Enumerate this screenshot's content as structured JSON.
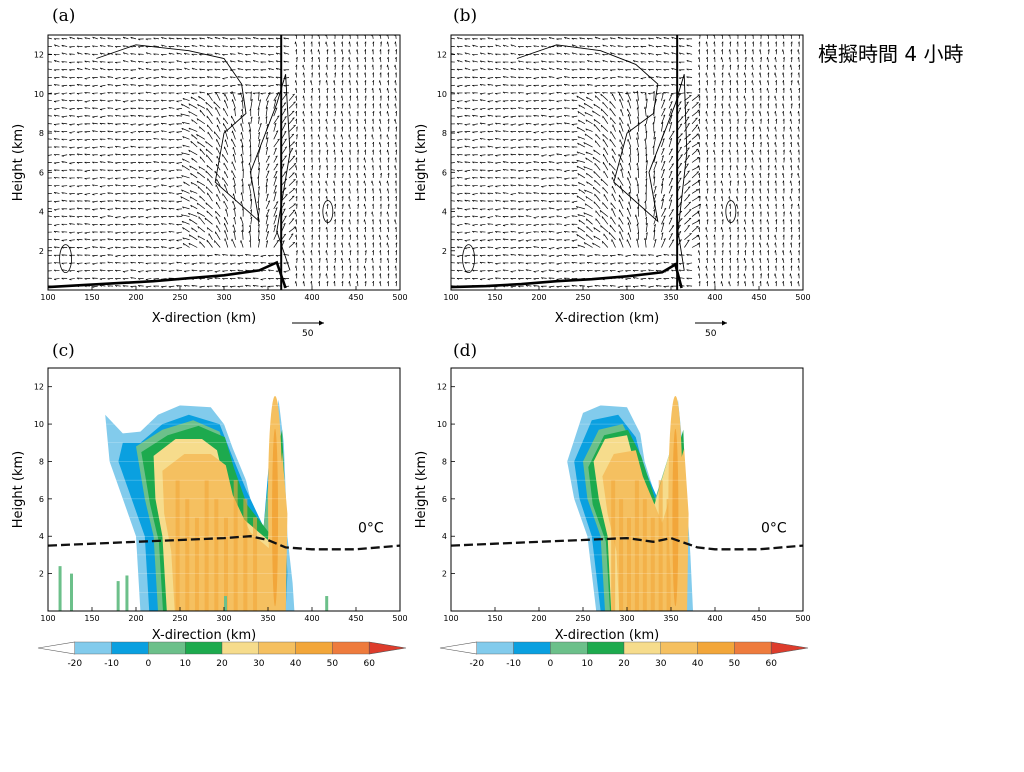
{
  "note": "模擬時間 4 小時",
  "panels": [
    {
      "letter": "(a)",
      "kind": "vector"
    },
    {
      "letter": "(b)",
      "kind": "vector"
    },
    {
      "letter": "(c)",
      "kind": "reflectivity"
    },
    {
      "letter": "(d)",
      "kind": "reflectivity"
    }
  ],
  "xlabel": "X-direction (km)",
  "ylabel": "Height (km)",
  "xticks": [
    100,
    150,
    200,
    250,
    300,
    350,
    400,
    450,
    500
  ],
  "yticks": [
    2,
    4,
    6,
    8,
    10,
    12
  ],
  "xlim": [
    100,
    500
  ],
  "ylim": [
    0,
    13
  ],
  "reference_vector_label": "50",
  "freezing_label": "0°C",
  "colorbar": {
    "tick_labels": [
      "-20",
      "-10",
      "0",
      "10",
      "20",
      "30",
      "40",
      "50",
      "60"
    ],
    "colors": [
      "#ffffff",
      "#82cbec",
      "#0aa0e0",
      "#6cc08a",
      "#1daa4e",
      "#f6dc8c",
      "#f5c060",
      "#f2a63a",
      "#ee7b3d",
      "#dd3c2c"
    ]
  },
  "chart_data": [
    {
      "type": "scatter",
      "panel": "(a)",
      "xlabel": "X-direction (km)",
      "ylabel": "Height (km)",
      "xlim": [
        100,
        500
      ],
      "ylim": [
        0,
        13
      ],
      "reference_vector": "50",
      "surface_cold_pool_boundary": {
        "x": [
          100,
          140,
          180,
          220,
          260,
          300,
          340,
          360,
          370
        ],
        "y": [
          0.15,
          0.25,
          0.35,
          0.45,
          0.6,
          0.75,
          1.0,
          1.4,
          0.1
        ]
      }
    },
    {
      "type": "scatter",
      "panel": "(b)",
      "xlabel": "X-direction (km)",
      "ylabel": "Height (km)",
      "xlim": [
        100,
        500
      ],
      "ylim": [
        0,
        13
      ],
      "reference_vector": "50",
      "surface_cold_pool_boundary": {
        "x": [
          100,
          140,
          180,
          220,
          260,
          300,
          340,
          355,
          362
        ],
        "y": [
          0.15,
          0.2,
          0.3,
          0.45,
          0.55,
          0.7,
          0.9,
          1.3,
          0.1
        ]
      }
    },
    {
      "type": "heatmap",
      "panel": "(c)",
      "xlabel": "X-direction (km)",
      "ylabel": "Height (km)",
      "xlim": [
        100,
        500
      ],
      "ylim": [
        0,
        13
      ],
      "colorbar_levels": [
        -20,
        -10,
        0,
        10,
        20,
        30,
        40,
        50,
        60
      ],
      "freezing_level": {
        "label": "0°C",
        "x": [
          100,
          150,
          200,
          250,
          300,
          330,
          350,
          370,
          400,
          450,
          500
        ],
        "y": [
          3.5,
          3.6,
          3.7,
          3.8,
          3.9,
          4.0,
          3.8,
          3.4,
          3.3,
          3.3,
          3.5
        ]
      }
    },
    {
      "type": "heatmap",
      "panel": "(d)",
      "xlabel": "X-direction (km)",
      "ylabel": "Height (km)",
      "xlim": [
        100,
        500
      ],
      "ylim": [
        0,
        13
      ],
      "colorbar_levels": [
        -20,
        -10,
        0,
        10,
        20,
        30,
        40,
        50,
        60
      ],
      "freezing_level": {
        "label": "0°C",
        "x": [
          100,
          150,
          200,
          250,
          300,
          330,
          350,
          380,
          400,
          450,
          500
        ],
        "y": [
          3.5,
          3.6,
          3.7,
          3.8,
          3.9,
          3.7,
          3.9,
          3.4,
          3.3,
          3.3,
          3.5
        ]
      }
    }
  ]
}
